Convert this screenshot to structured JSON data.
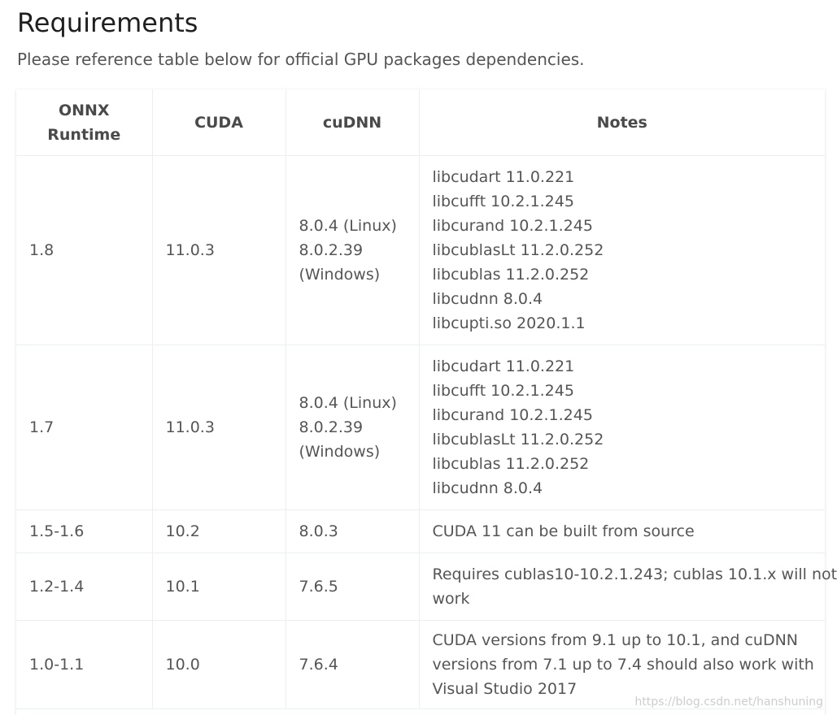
{
  "title": "Requirements",
  "subtitle": "Please reference table below for official GPU packages dependencies.",
  "table": {
    "headers": [
      "ONNX\nRuntime",
      "CUDA",
      "cuDNN",
      "Notes"
    ],
    "rows": [
      {
        "runtime": "1.8",
        "cuda": "11.0.3",
        "cudnn": [
          "8.0.4 (Linux)",
          "8.0.2.39",
          "(Windows)"
        ],
        "notes": [
          "libcudart 11.0.221",
          "libcufft 10.2.1.245",
          "libcurand 10.2.1.245",
          "libcublasLt 11.2.0.252",
          "libcublas 11.2.0.252",
          "libcudnn 8.0.4",
          "libcupti.so 2020.1.1"
        ]
      },
      {
        "runtime": "1.7",
        "cuda": "11.0.3",
        "cudnn": [
          "8.0.4 (Linux)",
          "8.0.2.39",
          "(Windows)"
        ],
        "notes": [
          "libcudart 11.0.221",
          "libcufft 10.2.1.245",
          "libcurand 10.2.1.245",
          "libcublasLt 11.2.0.252",
          "libcublas 11.2.0.252",
          "libcudnn 8.0.4"
        ]
      },
      {
        "runtime": "1.5-1.6",
        "cuda": "10.2",
        "cudnn": [
          "8.0.3"
        ],
        "notes": [
          "CUDA 11 can be built from source"
        ]
      },
      {
        "runtime": "1.2-1.4",
        "cuda": "10.1",
        "cudnn": [
          "7.6.5"
        ],
        "notes": [
          "Requires cublas10-10.2.1.243; cublas 10.1.x will not",
          "work"
        ]
      },
      {
        "runtime": "1.0-1.1",
        "cuda": "10.0",
        "cudnn": [
          "7.6.4"
        ],
        "notes": [
          "CUDA versions from 9.1 up to 10.1, and cuDNN",
          "versions from 7.1 up to 7.4 should also work with",
          "Visual Studio 2017"
        ]
      }
    ]
  },
  "watermark": "https://blog.csdn.net/hanshuning"
}
